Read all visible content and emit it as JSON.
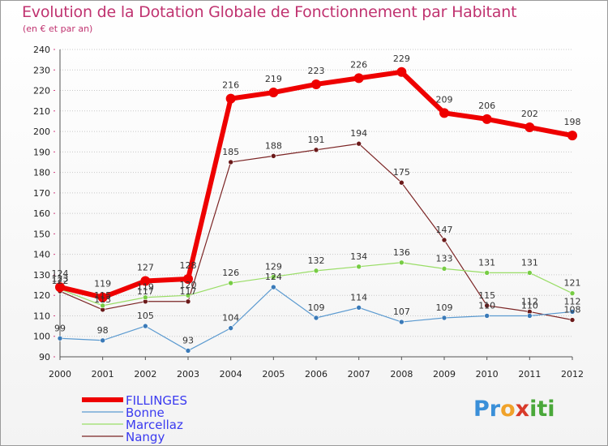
{
  "page": {
    "title": "Evolution de la Dotation Globale de Fonctionnement par Habitant",
    "subtitle": "(en € et par an)"
  },
  "logo": {
    "text": "Proxiti"
  },
  "colors": {
    "title": "#c03370",
    "legend_text": "#3a3af0",
    "axis": "#555555",
    "grid": "#c8c8c8"
  },
  "chart_data": {
    "type": "line",
    "title": "Evolution de la Dotation Globale de Fonctionnement par Habitant",
    "subtitle": "(en € et par an)",
    "xlabel": "",
    "ylabel": "",
    "x": [
      2000,
      2001,
      2002,
      2003,
      2004,
      2005,
      2006,
      2007,
      2008,
      2009,
      2010,
      2011,
      2012
    ],
    "ylim": [
      90,
      240
    ],
    "yticks": [
      90,
      100,
      110,
      120,
      130,
      140,
      150,
      160,
      170,
      180,
      190,
      200,
      210,
      220,
      230,
      240
    ],
    "grid": "horizontal",
    "legend_position": "bottom-left",
    "series": [
      {
        "name": "Nangy",
        "color": "#7b2424",
        "marker": "#6b1a1a",
        "width": 1.2,
        "point_size": 3,
        "values": [
          122,
          113,
          117,
          117,
          185,
          188,
          191,
          194,
          175,
          147,
          115,
          112,
          108
        ]
      },
      {
        "name": "Marcellaz",
        "color": "#99dd66",
        "marker": "#77cc44",
        "width": 1.2,
        "point_size": 3,
        "values": [
          123,
          115,
          119,
          120,
          126,
          129,
          132,
          134,
          136,
          133,
          131,
          131,
          121
        ]
      },
      {
        "name": "Bonne",
        "color": "#5b9ad0",
        "marker": "#3a7ab8",
        "width": 1.2,
        "point_size": 3,
        "values": [
          99,
          98,
          105,
          93,
          104,
          124,
          109,
          114,
          107,
          109,
          110,
          110,
          112
        ]
      },
      {
        "name": "FILLINGES",
        "color": "#ee0000",
        "marker": "#ee0000",
        "width": 6,
        "point_size": 6,
        "values": [
          124,
          119,
          127,
          128,
          216,
          219,
          223,
          226,
          229,
          209,
          206,
          202,
          198
        ]
      }
    ]
  }
}
